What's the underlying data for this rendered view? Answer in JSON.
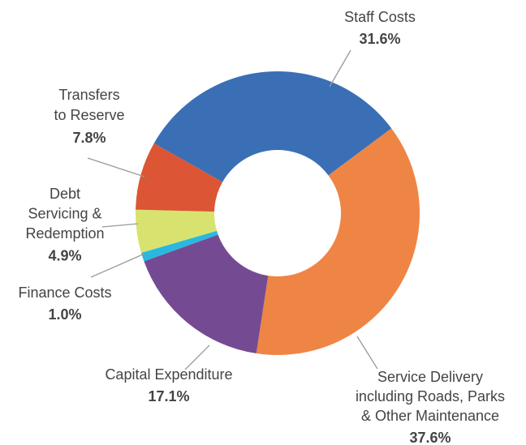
{
  "chart_data": {
    "type": "donut",
    "categories": [
      [
        "Staff Costs"
      ],
      [
        "Service Delivery",
        "including Roads, Parks",
        "& Other Maintenance"
      ],
      [
        "Capital Expenditure"
      ],
      [
        "Finance Costs"
      ],
      [
        "Debt",
        "Servicing &",
        "Redemption"
      ],
      [
        "Transfers",
        "to Reserve"
      ]
    ],
    "values": [
      31.6,
      37.6,
      17.1,
      1.0,
      4.9,
      7.8
    ],
    "value_labels": [
      "31.6%",
      "37.6%",
      "17.1%",
      "1.0%",
      "4.9%",
      "7.8%"
    ],
    "colors": [
      "#3a6fb5",
      "#ef8544",
      "#744b93",
      "#2ab8e0",
      "#d8e36f",
      "#dc5535"
    ]
  }
}
